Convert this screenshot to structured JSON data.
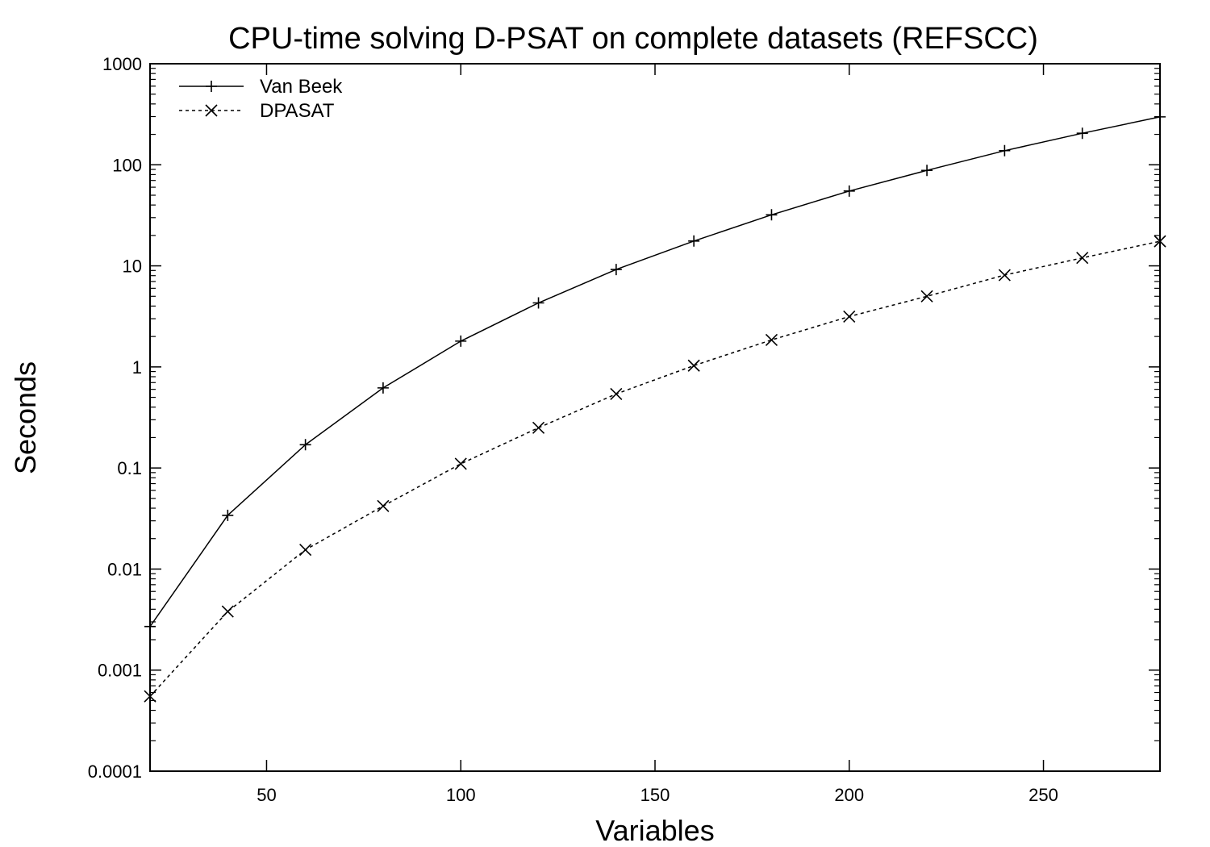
{
  "chart_data": {
    "type": "line",
    "title": "CPU-time solving D-PSAT on complete datasets (REFSCC)",
    "xlabel": "Variables",
    "ylabel": "Seconds",
    "xlim": [
      20,
      280
    ],
    "ylim": [
      0.0001,
      1000
    ],
    "yscale": "log",
    "grid": false,
    "legend_position": "top-left",
    "x_ticks": [
      50,
      100,
      150,
      200,
      250
    ],
    "x_tick_labels": [
      "50",
      "100",
      "150",
      "200",
      "250"
    ],
    "y_ticks": [
      0.0001,
      0.001,
      0.01,
      0.1,
      1,
      10,
      100,
      1000
    ],
    "y_tick_labels": [
      "0.0001",
      "0.001",
      "0.01",
      "0.1",
      "1",
      "10",
      "100",
      "1000"
    ],
    "series": [
      {
        "name": "Van Beek",
        "marker": "plus",
        "line_style": "solid",
        "x": [
          20,
          40,
          60,
          80,
          100,
          120,
          140,
          160,
          180,
          200,
          220,
          240,
          260,
          280
        ],
        "values": [
          0.0027,
          0.034,
          0.17,
          0.62,
          1.8,
          4.3,
          9.2,
          17.6,
          32,
          55,
          88,
          138,
          205,
          298
        ]
      },
      {
        "name": "DPASAT",
        "marker": "cross",
        "line_style": "dashed",
        "x": [
          20,
          40,
          60,
          80,
          100,
          120,
          140,
          160,
          180,
          200,
          220,
          240,
          260,
          280
        ],
        "values": [
          0.00055,
          0.0038,
          0.0155,
          0.042,
          0.11,
          0.25,
          0.54,
          1.03,
          1.85,
          3.15,
          5.0,
          8.1,
          12,
          17.5
        ]
      }
    ]
  }
}
